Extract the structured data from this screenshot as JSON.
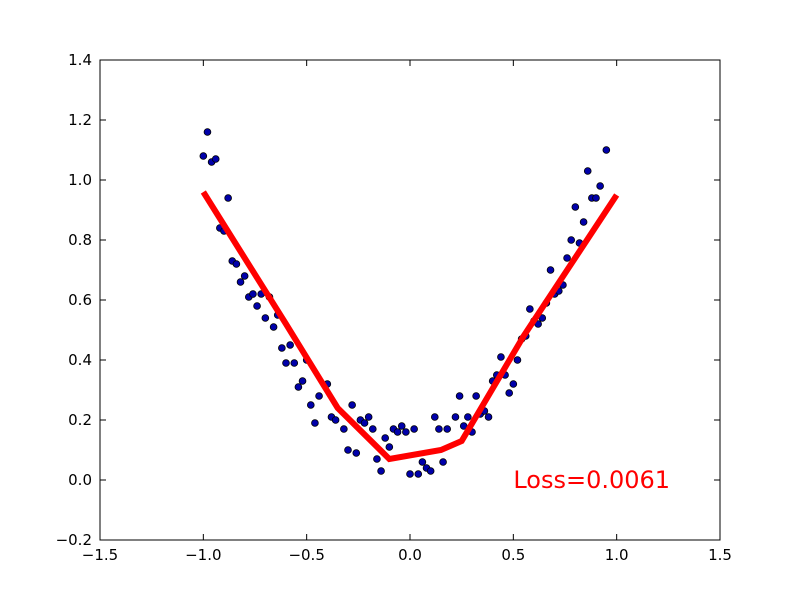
{
  "chart_data": {
    "type": "scatter",
    "xlim": [
      -1.5,
      1.5
    ],
    "ylim": [
      -0.2,
      1.4
    ],
    "x_ticks": [
      -1.5,
      -1.0,
      -0.5,
      0.0,
      0.5,
      1.0,
      1.5
    ],
    "x_tick_labels": [
      "−1.5",
      "−1.0",
      "−0.5",
      "0.0",
      "0.5",
      "1.0",
      "1.5"
    ],
    "y_ticks": [
      -0.2,
      0.0,
      0.2,
      0.4,
      0.6,
      0.8,
      1.0,
      1.2,
      1.4
    ],
    "y_tick_labels": [
      "−0.2",
      "0.0",
      "0.2",
      "0.4",
      "0.6",
      "0.8",
      "1.0",
      "1.2",
      "1.4"
    ],
    "grid": false,
    "annotation": {
      "text": "Loss=0.0061",
      "x": 0.5,
      "y": 0.0,
      "color": "#ff0000"
    },
    "series": [
      {
        "kind": "scatter",
        "color": "#0000aa",
        "points": [
          [
            -1.0,
            1.08
          ],
          [
            -0.98,
            1.16
          ],
          [
            -0.96,
            1.06
          ],
          [
            -0.94,
            1.07
          ],
          [
            -0.92,
            0.84
          ],
          [
            -0.9,
            0.83
          ],
          [
            -0.88,
            0.94
          ],
          [
            -0.86,
            0.73
          ],
          [
            -0.84,
            0.72
          ],
          [
            -0.82,
            0.66
          ],
          [
            -0.8,
            0.68
          ],
          [
            -0.78,
            0.61
          ],
          [
            -0.76,
            0.62
          ],
          [
            -0.74,
            0.58
          ],
          [
            -0.72,
            0.62
          ],
          [
            -0.7,
            0.54
          ],
          [
            -0.68,
            0.61
          ],
          [
            -0.66,
            0.51
          ],
          [
            -0.64,
            0.55
          ],
          [
            -0.62,
            0.44
          ],
          [
            -0.6,
            0.39
          ],
          [
            -0.58,
            0.45
          ],
          [
            -0.56,
            0.39
          ],
          [
            -0.54,
            0.31
          ],
          [
            -0.52,
            0.33
          ],
          [
            -0.5,
            0.4
          ],
          [
            -0.48,
            0.25
          ],
          [
            -0.46,
            0.19
          ],
          [
            -0.44,
            0.28
          ],
          [
            -0.4,
            0.32
          ],
          [
            -0.38,
            0.21
          ],
          [
            -0.36,
            0.2
          ],
          [
            -0.32,
            0.17
          ],
          [
            -0.3,
            0.1
          ],
          [
            -0.28,
            0.25
          ],
          [
            -0.26,
            0.09
          ],
          [
            -0.24,
            0.2
          ],
          [
            -0.22,
            0.19
          ],
          [
            -0.2,
            0.21
          ],
          [
            -0.18,
            0.17
          ],
          [
            -0.16,
            0.07
          ],
          [
            -0.14,
            0.03
          ],
          [
            -0.12,
            0.14
          ],
          [
            -0.1,
            0.11
          ],
          [
            -0.08,
            0.17
          ],
          [
            -0.06,
            0.16
          ],
          [
            -0.04,
            0.18
          ],
          [
            -0.02,
            0.16
          ],
          [
            0.0,
            0.02
          ],
          [
            0.02,
            0.17
          ],
          [
            0.04,
            0.02
          ],
          [
            0.06,
            0.06
          ],
          [
            0.08,
            0.04
          ],
          [
            0.1,
            0.03
          ],
          [
            0.12,
            0.21
          ],
          [
            0.14,
            0.17
          ],
          [
            0.16,
            0.06
          ],
          [
            0.18,
            0.17
          ],
          [
            0.22,
            0.21
          ],
          [
            0.24,
            0.28
          ],
          [
            0.26,
            0.18
          ],
          [
            0.28,
            0.21
          ],
          [
            0.3,
            0.16
          ],
          [
            0.32,
            0.28
          ],
          [
            0.34,
            0.22
          ],
          [
            0.36,
            0.23
          ],
          [
            0.38,
            0.21
          ],
          [
            0.4,
            0.33
          ],
          [
            0.42,
            0.35
          ],
          [
            0.44,
            0.41
          ],
          [
            0.46,
            0.35
          ],
          [
            0.48,
            0.29
          ],
          [
            0.5,
            0.32
          ],
          [
            0.52,
            0.4
          ],
          [
            0.54,
            0.47
          ],
          [
            0.56,
            0.48
          ],
          [
            0.58,
            0.57
          ],
          [
            0.6,
            0.53
          ],
          [
            0.62,
            0.52
          ],
          [
            0.64,
            0.54
          ],
          [
            0.66,
            0.59
          ],
          [
            0.68,
            0.7
          ],
          [
            0.7,
            0.62
          ],
          [
            0.72,
            0.63
          ],
          [
            0.74,
            0.65
          ],
          [
            0.76,
            0.74
          ],
          [
            0.78,
            0.8
          ],
          [
            0.8,
            0.91
          ],
          [
            0.82,
            0.79
          ],
          [
            0.84,
            0.86
          ],
          [
            0.86,
            1.03
          ],
          [
            0.88,
            0.94
          ],
          [
            0.9,
            0.94
          ],
          [
            0.92,
            0.98
          ],
          [
            0.95,
            1.1
          ]
        ]
      },
      {
        "kind": "line",
        "color": "#ff0000",
        "points": [
          [
            -1.0,
            0.96
          ],
          [
            -0.6,
            0.52
          ],
          [
            -0.35,
            0.24
          ],
          [
            -0.1,
            0.07
          ],
          [
            0.15,
            0.1
          ],
          [
            0.25,
            0.13
          ],
          [
            0.55,
            0.48
          ],
          [
            1.0,
            0.95
          ]
        ]
      }
    ]
  }
}
